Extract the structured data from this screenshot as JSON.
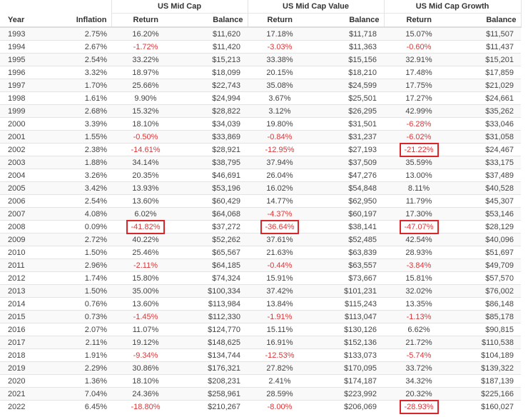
{
  "table": {
    "groups": [
      {
        "label": "US Mid Cap"
      },
      {
        "label": "US Mid Cap Value"
      },
      {
        "label": "US Mid Cap Growth"
      }
    ],
    "columns": {
      "year": "Year",
      "inflation": "Inflation",
      "return": "Return",
      "balance": "Balance"
    },
    "colors": {
      "negative": "#d9383a",
      "highlight_box": "#d9262a",
      "stripe": "#f9f9f9"
    },
    "rows": [
      {
        "year": "1993",
        "inflation": "2.75%",
        "mc_ret": "16.20%",
        "mc_bal": "$11,620",
        "mcv_ret": "17.18%",
        "mcv_bal": "$11,718",
        "mcg_ret": "15.07%",
        "mcg_bal": "$11,507"
      },
      {
        "year": "1994",
        "inflation": "2.67%",
        "mc_ret": "-1.72%",
        "mc_bal": "$11,420",
        "mcv_ret": "-3.03%",
        "mcv_bal": "$11,363",
        "mcg_ret": "-0.60%",
        "mcg_bal": "$11,437"
      },
      {
        "year": "1995",
        "inflation": "2.54%",
        "mc_ret": "33.22%",
        "mc_bal": "$15,213",
        "mcv_ret": "33.38%",
        "mcv_bal": "$15,156",
        "mcg_ret": "32.91%",
        "mcg_bal": "$15,201"
      },
      {
        "year": "1996",
        "inflation": "3.32%",
        "mc_ret": "18.97%",
        "mc_bal": "$18,099",
        "mcv_ret": "20.15%",
        "mcv_bal": "$18,210",
        "mcg_ret": "17.48%",
        "mcg_bal": "$17,859"
      },
      {
        "year": "1997",
        "inflation": "1.70%",
        "mc_ret": "25.66%",
        "mc_bal": "$22,743",
        "mcv_ret": "35.08%",
        "mcv_bal": "$24,599",
        "mcg_ret": "17.75%",
        "mcg_bal": "$21,029"
      },
      {
        "year": "1998",
        "inflation": "1.61%",
        "mc_ret": "9.90%",
        "mc_bal": "$24,994",
        "mcv_ret": "3.67%",
        "mcv_bal": "$25,501",
        "mcg_ret": "17.27%",
        "mcg_bal": "$24,661"
      },
      {
        "year": "1999",
        "inflation": "2.68%",
        "mc_ret": "15.32%",
        "mc_bal": "$28,822",
        "mcv_ret": "3.12%",
        "mcv_bal": "$26,295",
        "mcg_ret": "42.99%",
        "mcg_bal": "$35,262"
      },
      {
        "year": "2000",
        "inflation": "3.39%",
        "mc_ret": "18.10%",
        "mc_bal": "$34,039",
        "mcv_ret": "19.80%",
        "mcv_bal": "$31,501",
        "mcg_ret": "-6.28%",
        "mcg_bal": "$33,046"
      },
      {
        "year": "2001",
        "inflation": "1.55%",
        "mc_ret": "-0.50%",
        "mc_bal": "$33,869",
        "mcv_ret": "-0.84%",
        "mcv_bal": "$31,237",
        "mcg_ret": "-6.02%",
        "mcg_bal": "$31,058"
      },
      {
        "year": "2002",
        "inflation": "2.38%",
        "mc_ret": "-14.61%",
        "mc_bal": "$28,921",
        "mcv_ret": "-12.95%",
        "mcv_bal": "$27,193",
        "mcg_ret": "-21.22%",
        "mcg_bal": "$24,467"
      },
      {
        "year": "2003",
        "inflation": "1.88%",
        "mc_ret": "34.14%",
        "mc_bal": "$38,795",
        "mcv_ret": "37.94%",
        "mcv_bal": "$37,509",
        "mcg_ret": "35.59%",
        "mcg_bal": "$33,175"
      },
      {
        "year": "2004",
        "inflation": "3.26%",
        "mc_ret": "20.35%",
        "mc_bal": "$46,691",
        "mcv_ret": "26.04%",
        "mcv_bal": "$47,276",
        "mcg_ret": "13.00%",
        "mcg_bal": "$37,489"
      },
      {
        "year": "2005",
        "inflation": "3.42%",
        "mc_ret": "13.93%",
        "mc_bal": "$53,196",
        "mcv_ret": "16.02%",
        "mcv_bal": "$54,848",
        "mcg_ret": "8.11%",
        "mcg_bal": "$40,528"
      },
      {
        "year": "2006",
        "inflation": "2.54%",
        "mc_ret": "13.60%",
        "mc_bal": "$60,429",
        "mcv_ret": "14.77%",
        "mcv_bal": "$62,950",
        "mcg_ret": "11.79%",
        "mcg_bal": "$45,307"
      },
      {
        "year": "2007",
        "inflation": "4.08%",
        "mc_ret": "6.02%",
        "mc_bal": "$64,068",
        "mcv_ret": "-4.37%",
        "mcv_bal": "$60,197",
        "mcg_ret": "17.30%",
        "mcg_bal": "$53,146"
      },
      {
        "year": "2008",
        "inflation": "0.09%",
        "mc_ret": "-41.82%",
        "mc_bal": "$37,272",
        "mcv_ret": "-36.64%",
        "mcv_bal": "$38,141",
        "mcg_ret": "-47.07%",
        "mcg_bal": "$28,129"
      },
      {
        "year": "2009",
        "inflation": "2.72%",
        "mc_ret": "40.22%",
        "mc_bal": "$52,262",
        "mcv_ret": "37.61%",
        "mcv_bal": "$52,485",
        "mcg_ret": "42.54%",
        "mcg_bal": "$40,096"
      },
      {
        "year": "2010",
        "inflation": "1.50%",
        "mc_ret": "25.46%",
        "mc_bal": "$65,567",
        "mcv_ret": "21.63%",
        "mcv_bal": "$63,839",
        "mcg_ret": "28.93%",
        "mcg_bal": "$51,697"
      },
      {
        "year": "2011",
        "inflation": "2.96%",
        "mc_ret": "-2.11%",
        "mc_bal": "$64,185",
        "mcv_ret": "-0.44%",
        "mcv_bal": "$63,557",
        "mcg_ret": "-3.84%",
        "mcg_bal": "$49,709"
      },
      {
        "year": "2012",
        "inflation": "1.74%",
        "mc_ret": "15.80%",
        "mc_bal": "$74,324",
        "mcv_ret": "15.91%",
        "mcv_bal": "$73,667",
        "mcg_ret": "15.81%",
        "mcg_bal": "$57,570"
      },
      {
        "year": "2013",
        "inflation": "1.50%",
        "mc_ret": "35.00%",
        "mc_bal": "$100,334",
        "mcv_ret": "37.42%",
        "mcv_bal": "$101,231",
        "mcg_ret": "32.02%",
        "mcg_bal": "$76,002"
      },
      {
        "year": "2014",
        "inflation": "0.76%",
        "mc_ret": "13.60%",
        "mc_bal": "$113,984",
        "mcv_ret": "13.84%",
        "mcv_bal": "$115,243",
        "mcg_ret": "13.35%",
        "mcg_bal": "$86,148"
      },
      {
        "year": "2015",
        "inflation": "0.73%",
        "mc_ret": "-1.45%",
        "mc_bal": "$112,330",
        "mcv_ret": "-1.91%",
        "mcv_bal": "$113,047",
        "mcg_ret": "-1.13%",
        "mcg_bal": "$85,178"
      },
      {
        "year": "2016",
        "inflation": "2.07%",
        "mc_ret": "11.07%",
        "mc_bal": "$124,770",
        "mcv_ret": "15.11%",
        "mcv_bal": "$130,126",
        "mcg_ret": "6.62%",
        "mcg_bal": "$90,815"
      },
      {
        "year": "2017",
        "inflation": "2.11%",
        "mc_ret": "19.12%",
        "mc_bal": "$148,625",
        "mcv_ret": "16.91%",
        "mcv_bal": "$152,136",
        "mcg_ret": "21.72%",
        "mcg_bal": "$110,538"
      },
      {
        "year": "2018",
        "inflation": "1.91%",
        "mc_ret": "-9.34%",
        "mc_bal": "$134,744",
        "mcv_ret": "-12.53%",
        "mcv_bal": "$133,073",
        "mcg_ret": "-5.74%",
        "mcg_bal": "$104,189"
      },
      {
        "year": "2019",
        "inflation": "2.29%",
        "mc_ret": "30.86%",
        "mc_bal": "$176,321",
        "mcv_ret": "27.82%",
        "mcv_bal": "$170,095",
        "mcg_ret": "33.72%",
        "mcg_bal": "$139,322"
      },
      {
        "year": "2020",
        "inflation": "1.36%",
        "mc_ret": "18.10%",
        "mc_bal": "$208,231",
        "mcv_ret": "2.41%",
        "mcv_bal": "$174,187",
        "mcg_ret": "34.32%",
        "mcg_bal": "$187,139"
      },
      {
        "year": "2021",
        "inflation": "7.04%",
        "mc_ret": "24.36%",
        "mc_bal": "$258,961",
        "mcv_ret": "28.59%",
        "mcv_bal": "$223,992",
        "mcg_ret": "20.32%",
        "mcg_bal": "$225,166"
      },
      {
        "year": "2022",
        "inflation": "6.45%",
        "mc_ret": "-18.80%",
        "mc_bal": "$210,267",
        "mcv_ret": "-8.00%",
        "mcv_bal": "$206,069",
        "mcg_ret": "-28.93%",
        "mcg_bal": "$160,027"
      }
    ],
    "highlighted_cells": [
      {
        "year": "2002",
        "column": "mcg_ret"
      },
      {
        "year": "2008",
        "column": "mc_ret"
      },
      {
        "year": "2008",
        "column": "mcv_ret"
      },
      {
        "year": "2008",
        "column": "mcg_ret"
      },
      {
        "year": "2022",
        "column": "mcg_ret"
      }
    ]
  }
}
